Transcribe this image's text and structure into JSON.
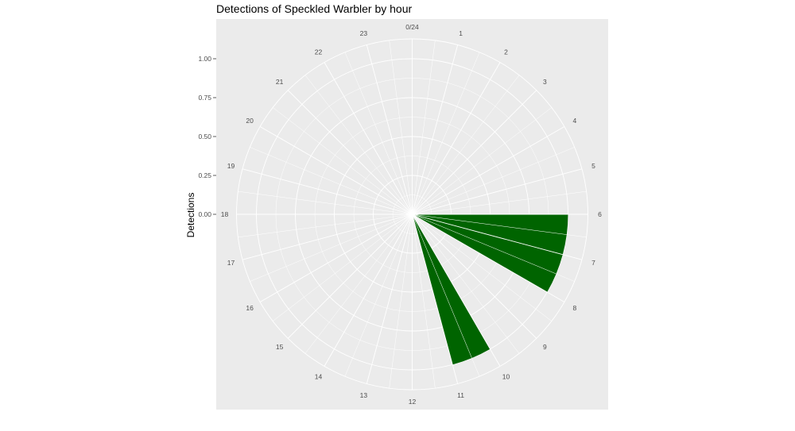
{
  "chart_data": {
    "type": "bar",
    "coord": "polar",
    "title": "Detections of Speckled Warbler by hour",
    "ylabel": "Detections",
    "ylim": [
      0,
      1
    ],
    "yticks": [
      "0.00",
      "0.25",
      "0.50",
      "0.75",
      "1.00"
    ],
    "x_labels": [
      "0/24",
      "1",
      "2",
      "3",
      "4",
      "5",
      "6",
      "7",
      "8",
      "9",
      "10",
      "11",
      "12",
      "13",
      "14",
      "15",
      "16",
      "17",
      "18",
      "19",
      "20",
      "21",
      "22",
      "23"
    ],
    "bars": [
      {
        "from_hour": 6,
        "to_hour": 7,
        "value": 1.0
      },
      {
        "from_hour": 7,
        "to_hour": 8,
        "value": 1.0
      },
      {
        "from_hour": 10,
        "to_hour": 11,
        "value": 1.0
      }
    ],
    "grid": true,
    "colors": {
      "panel": "#ebebeb",
      "grid": "#ffffff",
      "bar": "#006400"
    }
  }
}
